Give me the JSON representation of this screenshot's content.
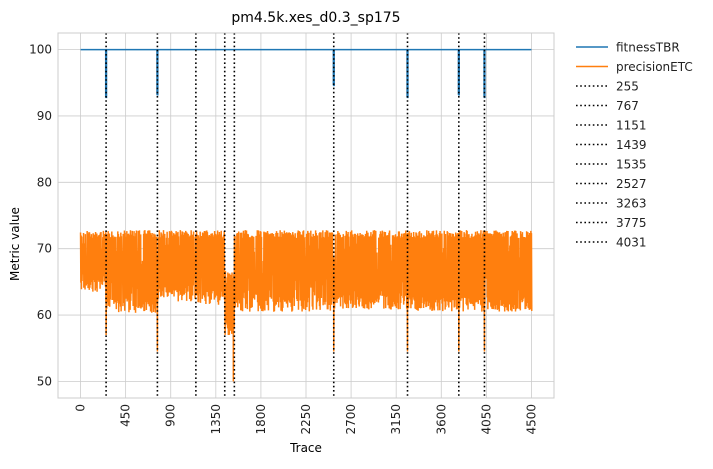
{
  "chart_data": {
    "type": "line",
    "title": "pm4.5k.xes_d0.3_sp175",
    "xlabel": "Trace",
    "ylabel": "Metric value",
    "xlim": [
      -225,
      4725
    ],
    "ylim": [
      47.5,
      102.5
    ],
    "x_ticks": [
      0,
      450,
      900,
      1350,
      1800,
      2250,
      2700,
      3150,
      3600,
      4050,
      4500
    ],
    "y_ticks": [
      50,
      60,
      70,
      80,
      90,
      100
    ],
    "grid": true,
    "legend_position": "outside-right",
    "colors": {
      "fitness": "#1f77b4",
      "precision": "#ff7f0e",
      "drift": "#000000",
      "grid": "#cccccc",
      "axes": "#cccccc"
    },
    "series": [
      {
        "name": "fitnessTBR",
        "color": "#1f77b4",
        "baseline": 100,
        "x_range": [
          0,
          4500
        ],
        "dips": [
          {
            "x": 255,
            "width": 8,
            "min": 92.8
          },
          {
            "x": 767,
            "width": 8,
            "min": 93.2
          },
          {
            "x": 2527,
            "width": 8,
            "min": 94.6
          },
          {
            "x": 3263,
            "width": 8,
            "min": 92.8
          },
          {
            "x": 3775,
            "width": 8,
            "min": 93.2
          },
          {
            "x": 4031,
            "width": 8,
            "min": 92.8
          }
        ]
      },
      {
        "name": "precisionETC",
        "color": "#ff7f0e",
        "x_range": [
          0,
          4500
        ],
        "band_low": 60.5,
        "band_high": 72.8,
        "segments": [
          {
            "x0": 0,
            "x1": 255,
            "low": 63.5,
            "high": 72.8
          },
          {
            "x0": 255,
            "x1": 767,
            "low": 60.3,
            "high": 72.8
          },
          {
            "x0": 767,
            "x1": 1151,
            "low": 62.0,
            "high": 72.8
          },
          {
            "x0": 1151,
            "x1": 1439,
            "low": 61.5,
            "high": 72.8
          },
          {
            "x0": 1439,
            "x1": 1535,
            "low": 57.0,
            "high": 66.7
          },
          {
            "x0": 1535,
            "x1": 2527,
            "low": 60.5,
            "high": 72.8
          },
          {
            "x0": 2527,
            "x1": 3263,
            "low": 60.8,
            "high": 72.8
          },
          {
            "x0": 3263,
            "x1": 3775,
            "low": 60.5,
            "high": 72.8
          },
          {
            "x0": 3775,
            "x1": 4031,
            "low": 60.5,
            "high": 72.8
          },
          {
            "x0": 4031,
            "x1": 4500,
            "low": 60.5,
            "high": 72.8
          }
        ],
        "dips": [
          {
            "x": 255,
            "min": 57.0
          },
          {
            "x": 767,
            "min": 54.5
          },
          {
            "x": 1475,
            "min": 57.0
          },
          {
            "x": 1525,
            "min": 50.0
          },
          {
            "x": 2527,
            "min": 54.5
          },
          {
            "x": 3263,
            "min": 54.5
          },
          {
            "x": 3775,
            "min": 54.5
          },
          {
            "x": 4031,
            "min": 54.5
          }
        ]
      }
    ],
    "drift_points": [
      255,
      767,
      1151,
      1439,
      1535,
      2527,
      3263,
      3775,
      4031
    ],
    "legend": {
      "entries": [
        "fitnessTBR",
        "precisionETC",
        "255",
        "767",
        "1151",
        "1439",
        "1535",
        "2527",
        "3263",
        "3775",
        "4031"
      ]
    }
  }
}
